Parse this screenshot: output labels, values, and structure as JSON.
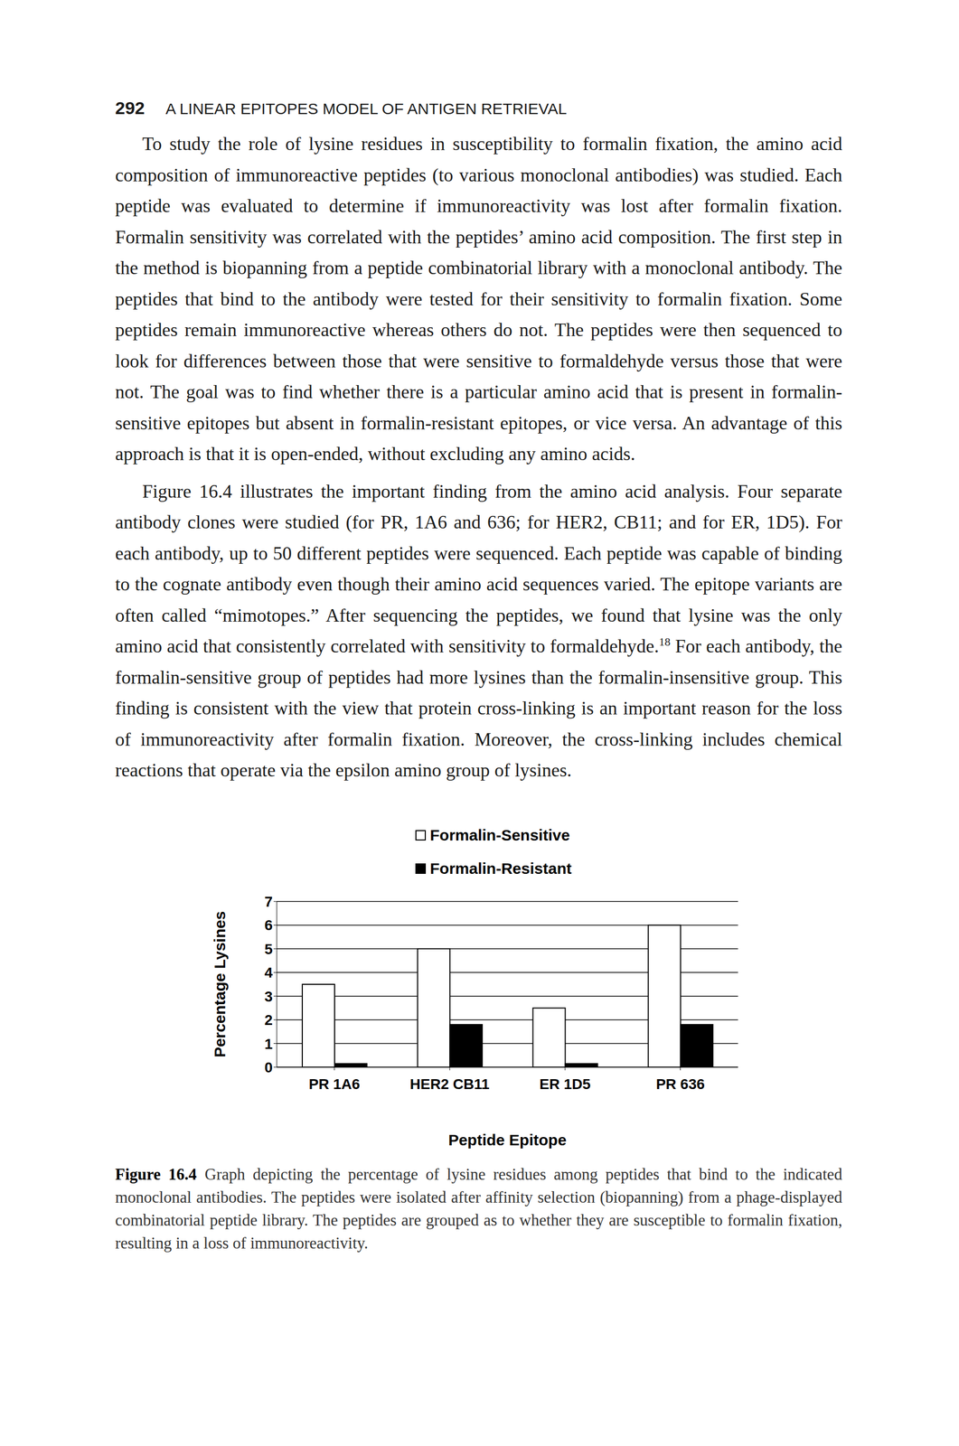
{
  "header": {
    "page_number": "292",
    "running_title": "A LINEAR EPITOPES MODEL OF ANTIGEN RETRIEVAL"
  },
  "paragraphs": [
    {
      "text": "To study the role of lysine residues in susceptibility to formalin fixation, the amino acid composition of immunoreactive peptides (to various monoclonal antibodies) was studied. Each peptide was evaluated to determine if immunoreactivity was lost after formalin fixation. Formalin sensitivity was correlated with the peptides’ amino acid composition. The first step in the method is biopanning from a peptide combinatorial library with a monoclonal antibody. The peptides that bind to the antibody were tested for their sensitivity to formalin fixation. Some peptides remain immunoreactive whereas others do not. The peptides were then sequenced to look for differences between those that were sensitive to formaldehyde versus those that were not. The goal was to find whether there is a particular amino acid that is present in formalin-sensitive epitopes but absent in formalin-resistant epitopes, or vice versa. An advantage of this approach is that it is open-ended, without excluding any amino acids."
    },
    {
      "text": "Figure 16.4 illustrates the important finding from the amino acid analysis. Four separate antibody clones were studied (for PR, 1A6 and 636; for HER2, CB11; and for ER, 1D5). For each antibody, up to 50 different peptides were sequenced. Each peptide was capable of binding to the cognate antibody even though their amino acid sequences varied. The epitope variants are often called “mimotopes.” After sequencing the peptides, we found that lysine was the only amino acid that consistently correlated with sensitivity to formaldehyde.",
      "reference": "18",
      "after": " For each antibody, the formalin-sensitive group of peptides had more lysines than the formalin-insensitive group. This finding is consistent with the view that protein cross-linking is an important reason for the loss of immunoreactivity after formalin fixation. Moreover, the cross-linking includes chemical reactions that operate via the epsilon amino group of lysines."
    }
  ],
  "chart_data": {
    "type": "bar",
    "x_label": "Peptide Epitope",
    "y_label": "Percentage Lysines",
    "categories": [
      "PR 1A6",
      "HER2 CB11",
      "ER 1D5",
      "PR 636"
    ],
    "series": [
      {
        "name": "Formalin-Sensitive",
        "color": "#ffffff",
        "values": [
          3.5,
          5.0,
          2.5,
          6.0
        ]
      },
      {
        "name": "Formalin-Resistant",
        "color": "#000000",
        "values": [
          0.15,
          1.8,
          0.15,
          1.8
        ]
      }
    ],
    "ylim": [
      0,
      7
    ],
    "yticks": [
      0,
      1,
      2,
      3,
      4,
      5,
      6,
      7
    ],
    "grid": true,
    "legend": "top"
  },
  "caption": {
    "label": "Figure 16.4",
    "text": "Graph depicting the percentage of lysine residues among peptides that bind to the indicated monoclonal antibodies. The peptides were isolated after affinity selection (biopanning) from a phage-displayed combinatorial peptide library. The peptides are grouped as to whether they are susceptible to formalin fixation, resulting in a loss of immunoreactivity."
  }
}
